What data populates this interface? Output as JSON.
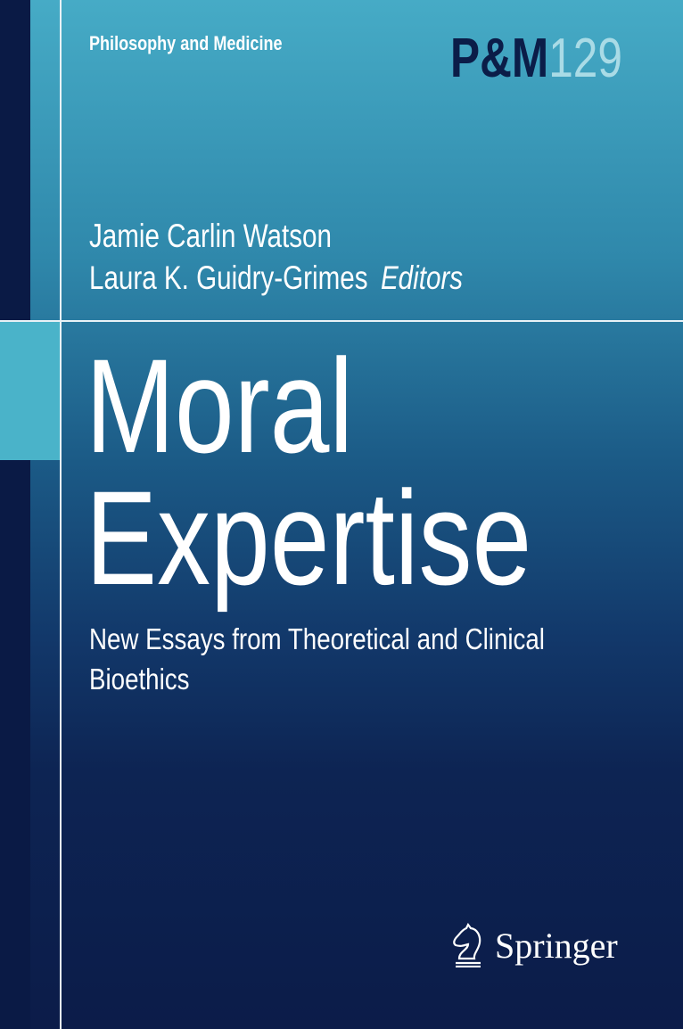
{
  "series": "Philosophy and Medicine",
  "volume": {
    "prefix": "P&M",
    "number": "129"
  },
  "editors": [
    "Jamie Carlin Watson",
    "Laura K. Guidry-Grimes"
  ],
  "editors_label": "Editors",
  "title": [
    "Moral",
    "Expertise"
  ],
  "subtitle": [
    "New Essays from Theoretical and Clinical",
    "Bioethics"
  ],
  "publisher": "Springer",
  "colors": {
    "top": "#46abc6",
    "bottom": "#0c1c49",
    "accent": "#4ab3c9",
    "strip": "#0a1a45"
  }
}
